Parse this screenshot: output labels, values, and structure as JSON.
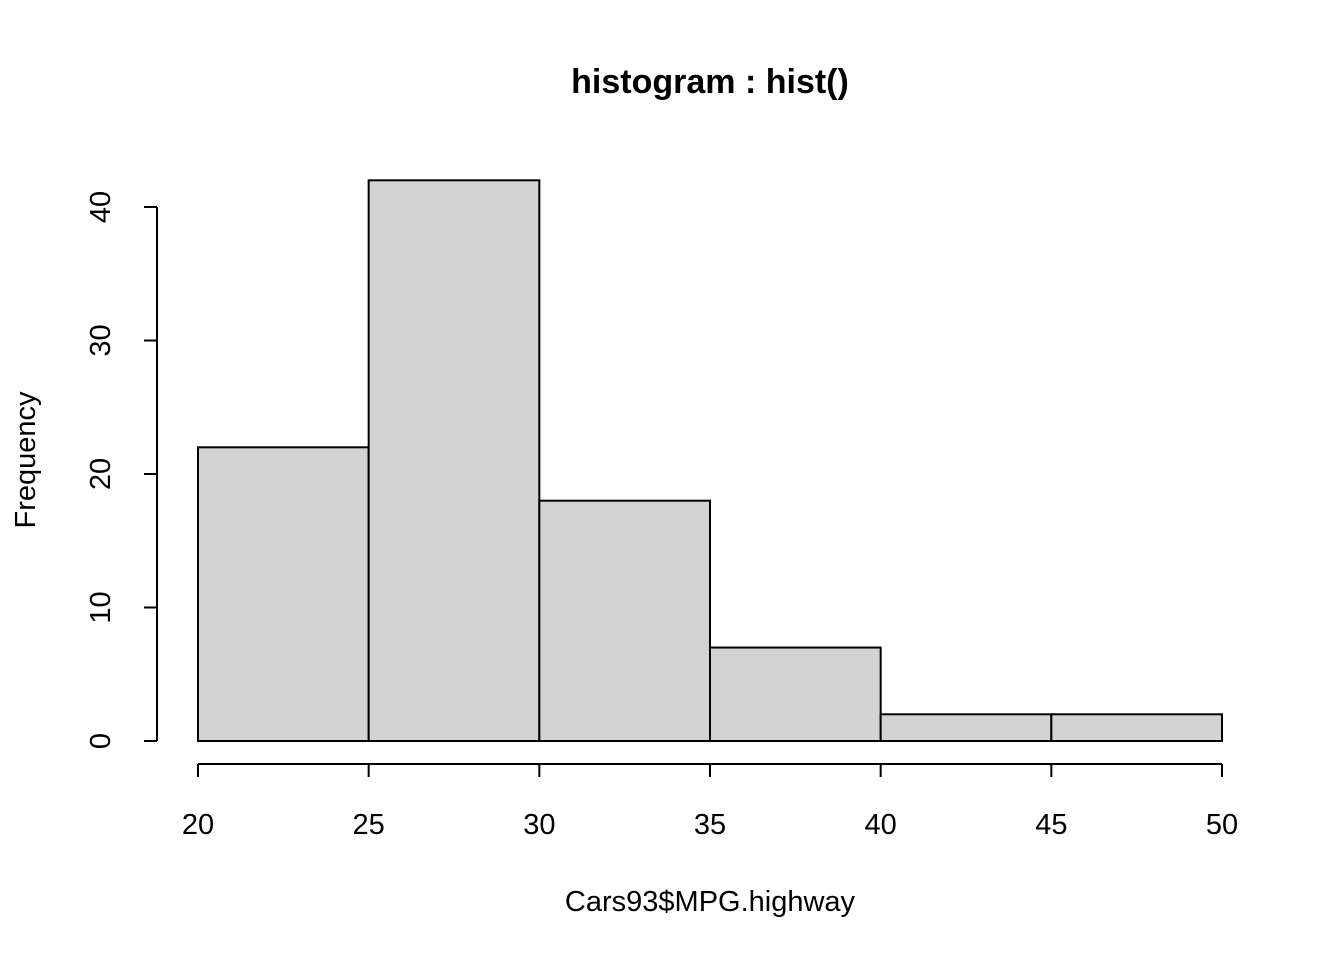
{
  "chart_data": {
    "type": "bar",
    "subtype": "histogram",
    "title": "histogram : hist()",
    "xlabel": "Cars93$MPG.highway",
    "ylabel": "Frequency",
    "bins": [
      {
        "from": 20,
        "to": 25,
        "count": 22
      },
      {
        "from": 25,
        "to": 30,
        "count": 42
      },
      {
        "from": 30,
        "to": 35,
        "count": 18
      },
      {
        "from": 35,
        "to": 40,
        "count": 7
      },
      {
        "from": 40,
        "to": 45,
        "count": 2
      },
      {
        "from": 45,
        "to": 50,
        "count": 2
      }
    ],
    "xlim": [
      20,
      50
    ],
    "ylim": [
      0,
      42
    ],
    "xticks": [
      20,
      25,
      30,
      35,
      40,
      45,
      50
    ],
    "yticks": [
      0,
      10,
      20,
      30,
      40
    ],
    "colors": {
      "bar_fill": "#d3d3d3",
      "bar_stroke": "#000000"
    },
    "grid": false,
    "legend": "none"
  }
}
